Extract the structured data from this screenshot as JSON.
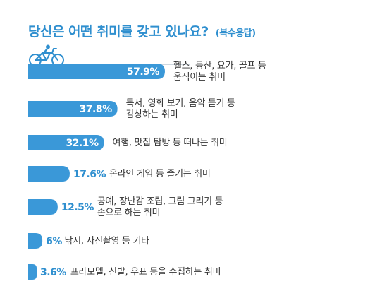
{
  "title": "당신은 어떤 취미를 갖고 있나요?",
  "subtitle": "(복수응답)",
  "colors": {
    "accent": "#2f8fcf",
    "bar": "#3a98d8",
    "text": "#333333",
    "label_outside": "#2f8fcf",
    "label_inside": "#ffffff"
  },
  "icon": "bicycle-rider-icon",
  "chart_data": {
    "type": "bar",
    "orientation": "horizontal",
    "unit": "%",
    "title": "당신은 어떤 취미를 갖고 있나요?",
    "subtitle": "(복수응답)",
    "xlim": [
      0,
      100
    ],
    "categories": [
      [
        "헬스, 등산, 요가, 골프 등",
        "움직이는 취미"
      ],
      [
        "독서, 영화 보기, 음악 듣기 등",
        "감상하는 취미"
      ],
      [
        "여행, 맛집 탐방 등 떠나는 취미"
      ],
      [
        "온라인 게임 등 즐기는 취미"
      ],
      [
        "공예, 장난감 조립, 그림 그리기 등",
        "손으로 하는 취미"
      ],
      [
        "낚시, 사진촬영 등 기타"
      ],
      [
        "프라모델, 신발, 우표 등을 수집하는 취미"
      ]
    ],
    "values": [
      57.9,
      37.8,
      32.1,
      17.6,
      12.5,
      6,
      3.6
    ],
    "value_labels": [
      "57.9%",
      "37.8%",
      "32.1%",
      "17.6%",
      "12.5%",
      "6%",
      "3.6%"
    ],
    "value_label_position": [
      "inside",
      "inside",
      "inside",
      "outside",
      "outside",
      "outside",
      "outside"
    ]
  }
}
